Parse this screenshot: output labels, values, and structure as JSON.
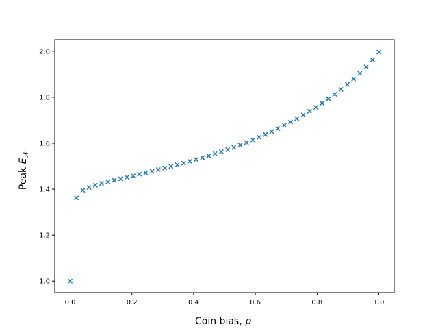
{
  "chart_data": {
    "type": "scatter",
    "title": "",
    "xlabel_main": "Coin bias, ",
    "xlabel_symbol": "ρ",
    "ylabel_main": "Peak ",
    "ylabel_symbol": "E",
    "ylabel_subscript": "𝒩",
    "xlim": [
      -0.05,
      1.05
    ],
    "ylim": [
      0.95,
      2.05
    ],
    "xticks": [
      "0.0",
      "0.2",
      "0.4",
      "0.6",
      "0.8",
      "1.0"
    ],
    "yticks": [
      "1.0",
      "1.2",
      "1.4",
      "1.6",
      "1.8",
      "2.0"
    ],
    "marker": "x",
    "color": "#1f77b4",
    "series": [
      {
        "x": [
          0.0,
          0.0204,
          0.0408,
          0.0612,
          0.0816,
          0.102,
          0.1224,
          0.1429,
          0.1633,
          0.1837,
          0.2041,
          0.2245,
          0.2449,
          0.2653,
          0.2857,
          0.3061,
          0.3265,
          0.3469,
          0.3673,
          0.3878,
          0.4082,
          0.4286,
          0.449,
          0.4694,
          0.4898,
          0.5102,
          0.5306,
          0.551,
          0.5714,
          0.5918,
          0.6122,
          0.6327,
          0.6531,
          0.6735,
          0.6939,
          0.7143,
          0.7347,
          0.7551,
          0.7755,
          0.7959,
          0.8163,
          0.8367,
          0.8571,
          0.8776,
          0.898,
          0.9184,
          0.9388,
          0.9592,
          0.9796,
          1.0
        ],
        "y": [
          1.0,
          1.362,
          1.395,
          1.407,
          1.417,
          1.425,
          1.432,
          1.439,
          1.445,
          1.452,
          1.458,
          1.465,
          1.471,
          1.478,
          1.485,
          1.492,
          1.499,
          1.506,
          1.513,
          1.521,
          1.529,
          1.537,
          1.545,
          1.554,
          1.563,
          1.572,
          1.582,
          1.592,
          1.603,
          1.614,
          1.626,
          1.638,
          1.651,
          1.664,
          1.678,
          1.692,
          1.707,
          1.723,
          1.739,
          1.756,
          1.774,
          1.793,
          1.813,
          1.834,
          1.856,
          1.879,
          1.904,
          1.932,
          1.963,
          1.996
        ]
      }
    ]
  }
}
